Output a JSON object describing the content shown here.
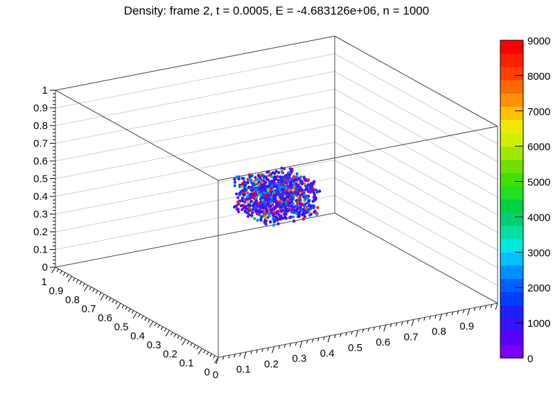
{
  "chart_data": {
    "type": "scatter3d",
    "title": "Density: frame 2, t = 0.0005, E = -4.683126e+06, n = 1000",
    "x_axis": {
      "range": [
        0,
        1
      ],
      "ticks": [
        "0",
        "0.1",
        "0.2",
        "0.3",
        "0.4",
        "0.5",
        "0.6",
        "0.7",
        "0.8",
        "0.9"
      ]
    },
    "y_axis": {
      "range": [
        0,
        1
      ],
      "ticks": [
        "0",
        "0.1",
        "0.2",
        "0.3",
        "0.4",
        "0.5",
        "0.6",
        "0.7",
        "0.8",
        "0.9",
        "1"
      ]
    },
    "z_axis": {
      "range": [
        0,
        1
      ],
      "ticks": [
        "0",
        "0.1",
        "0.2",
        "0.3",
        "0.4",
        "0.5",
        "0.6",
        "0.7",
        "0.8",
        "0.9",
        "1"
      ]
    },
    "particles": {
      "count": 1000,
      "x_range": [
        0.4,
        0.6
      ],
      "y_range": [
        0.4,
        0.6
      ],
      "z_range": [
        0.4,
        0.6
      ],
      "density_range": [
        0,
        9000
      ]
    },
    "colorbar": {
      "min": 0,
      "max": 9000,
      "labels": [
        "0",
        "1000",
        "2000",
        "3000",
        "4000",
        "5000",
        "6000",
        "7000",
        "8000",
        "9000"
      ],
      "colors": [
        "#7a00ff",
        "#5a00ff",
        "#3a10ff",
        "#1e1eff",
        "#0040ff",
        "#0060ff",
        "#0090ff",
        "#00c0ff",
        "#00e8e0",
        "#00e0a0",
        "#00d070",
        "#00d040",
        "#20e020",
        "#40e000",
        "#70e000",
        "#a0e800",
        "#d0f000",
        "#f0e800",
        "#ffc000",
        "#ff9000",
        "#ff6800",
        "#ff4000",
        "#ff2000",
        "#ff0000"
      ]
    }
  }
}
